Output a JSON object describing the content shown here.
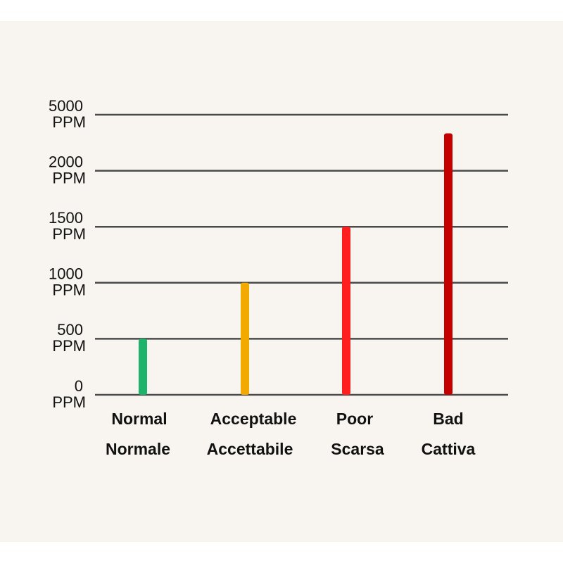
{
  "chart_data": {
    "type": "bar",
    "categories": [
      "Normal",
      "Acceptable",
      "Poor",
      "Bad"
    ],
    "categories_it": [
      "Normale",
      "Accettabile",
      "Scarsa",
      "Cattiva"
    ],
    "values": [
      500,
      1000,
      1500,
      4000
    ],
    "colors": [
      "#1db36b",
      "#f2a900",
      "#ff1f1f",
      "#c40000"
    ],
    "y_unit": "PPM",
    "ylim": [
      0,
      5000
    ],
    "yticks": [
      0,
      500,
      1000,
      1500,
      2000,
      5000
    ],
    "grid": true
  }
}
